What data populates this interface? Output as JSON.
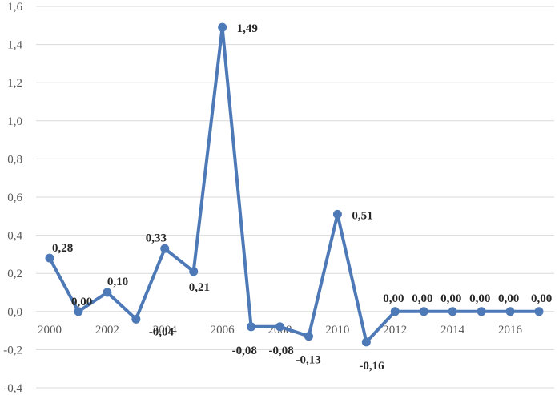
{
  "chart_data": {
    "type": "line",
    "title": "",
    "xlabel": "",
    "ylabel": "",
    "x": [
      2000,
      2001,
      2002,
      2003,
      2004,
      2005,
      2006,
      2007,
      2008,
      2009,
      2010,
      2011,
      2012,
      2013,
      2014,
      2015,
      2016,
      2017
    ],
    "series": [
      {
        "values": [
          0.28,
          0.0,
          0.1,
          -0.04,
          0.33,
          0.21,
          1.49,
          -0.08,
          -0.08,
          -0.13,
          0.51,
          -0.16,
          0.0,
          0.0,
          0.0,
          0.0,
          0.0,
          0.0
        ],
        "data_labels": [
          "0,28",
          "0,00",
          "0,10",
          "-0,04",
          "0,33",
          "0,21",
          "1,49",
          "-0,08",
          "-0,08",
          "-0,13",
          "0,51",
          "-0,16",
          "0,00",
          "0,00",
          "0,00",
          "0,00",
          "0,00",
          "0,00"
        ],
        "color": "#4e79b7"
      }
    ],
    "ylim": [
      -0.4,
      1.6
    ],
    "y_ticks": [
      "-0,4",
      "-0,2",
      "0,0",
      "0,2",
      "0,4",
      "0,6",
      "0,8",
      "1,0",
      "1,2",
      "1,4",
      "1,6"
    ],
    "x_tick_labels": [
      "2000",
      "2002",
      "2004",
      "2006",
      "2008",
      "2010",
      "2012",
      "2014",
      "2016"
    ],
    "grid": true,
    "legend": "none"
  }
}
